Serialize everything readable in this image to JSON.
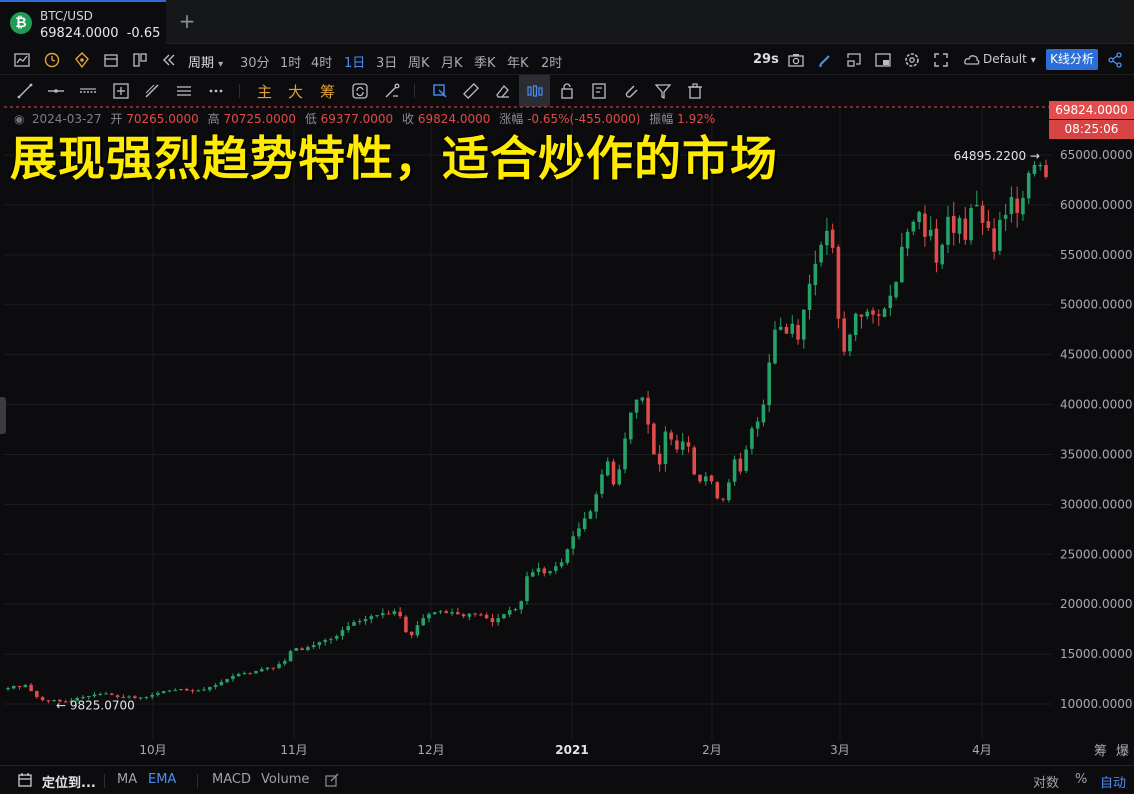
{
  "tab": {
    "symbol": "BTC/USD",
    "price": "69824.0000",
    "change": "-0.65",
    "add_label": "+"
  },
  "toolbar": {
    "period_label": "周期",
    "timeframes": [
      "30分",
      "1时",
      "4时",
      "1日",
      "3日",
      "周K",
      "月K",
      "季K",
      "年K",
      "2时"
    ],
    "active_timeframe": "1日",
    "countdown": "29s",
    "theme": "Default",
    "kline_button": "K线分析"
  },
  "drawing_tools": {
    "indicator_labels": [
      "主",
      "大",
      "筹"
    ]
  },
  "ohlc": {
    "date": "2024-03-27",
    "open_label": "开",
    "open": "70265.0000",
    "high_label": "高",
    "high": "70725.0000",
    "low_label": "低",
    "low": "69377.0000",
    "close_label": "收",
    "close": "69824.0000",
    "change_label": "涨幅",
    "change": "-0.65%(-455.0000)",
    "amplitude_label": "振幅",
    "amplitude": "1.92%"
  },
  "banner": "展现强烈趋势特性，适合炒作的市场",
  "price_axis": {
    "current_price_tag": "69824.0000",
    "countdown_tag": "08:25:06"
  },
  "bottom": {
    "locate_label": "定位到...",
    "indicators": [
      "MA",
      "EMA",
      "MACD",
      "Volume"
    ],
    "active_indicator": "EMA",
    "log_label": "对数",
    "percent_label": "%",
    "auto_label": "自动",
    "right_labels": [
      "筹",
      "爆"
    ]
  },
  "colors": {
    "up": "#26a269",
    "down": "#e04b4b",
    "accent": "#2b6fd6",
    "banner": "#ffeb00",
    "background": "#0c0c0e"
  },
  "chart_data": {
    "type": "candlestick",
    "symbol": "BTC/USD",
    "interval": "1D",
    "y_ticks": [
      10000,
      15000,
      20000,
      25000,
      30000,
      35000,
      40000,
      45000,
      50000,
      55000,
      60000,
      65000
    ],
    "y_tick_labels": [
      "10000.0000",
      "15000.0000",
      "20000.0000",
      "25000.0000",
      "30000.0000",
      "35000.0000",
      "40000.0000",
      "45000.0000",
      "50000.0000",
      "55000.0000",
      "60000.0000",
      "65000.0000"
    ],
    "x_ticks": [
      "10月",
      "11月",
      "12月",
      "2021",
      "2月",
      "3月",
      "4月"
    ],
    "high_annotation": {
      "label": "64895.2200",
      "value": 64895.22
    },
    "low_annotation": {
      "label": "9825.0700",
      "value": 9825.07
    },
    "close_series_approx": [
      11600,
      11800,
      11700,
      11900,
      11300,
      10700,
      10400,
      10300,
      10400,
      10250,
      10200,
      10350,
      10600,
      10700,
      10800,
      10950,
      11000,
      11050,
      10900,
      10700,
      10650,
      10750,
      10600,
      10650,
      10700,
      10900,
      11100,
      11300,
      11350,
      11400,
      11500,
      11350,
      11300,
      11350,
      11450,
      11700,
      11900,
      12200,
      12500,
      12800,
      13000,
      13100,
      13050,
      13300,
      13500,
      13650,
      13600,
      14000,
      14300,
      15300,
      15600,
      15400,
      15700,
      15900,
      16200,
      16400,
      16500,
      16800,
      17400,
      17800,
      18200,
      18300,
      18500,
      18800,
      18900,
      19100,
      19050,
      19300,
      18800,
      17200,
      16900,
      17900,
      18600,
      19000,
      19200,
      19300,
      19100,
      19200,
      19000,
      18800,
      19050,
      19000,
      18900,
      18600,
      18200,
      18600,
      19000,
      19400,
      19500,
      20300,
      22800,
      23200,
      23600,
      23100,
      23300,
      23800,
      24200,
      25500,
      26800,
      27600,
      28600,
      29300,
      31000,
      33000,
      34300,
      32000,
      33500,
      36600,
      39200,
      40500,
      40700,
      38000,
      35000,
      34000,
      37300,
      36500,
      35500,
      36300,
      35800,
      33000,
      32300,
      32800,
      32300,
      30600,
      30500,
      32200,
      34500,
      33300,
      35500,
      37600,
      38300,
      40000,
      44200,
      47500,
      47800,
      47100,
      48100,
      46500,
      49500,
      52100,
      54100,
      56000,
      57400,
      55700,
      48600,
      45300,
      47000,
      49100,
      48800,
      49300,
      49000,
      48900,
      49600,
      50900,
      52300,
      55800,
      57300,
      58300,
      59300,
      56800,
      57500,
      54200,
      56000,
      58800,
      57200,
      58700,
      56500,
      59700,
      60000,
      58200,
      57700,
      55300,
      58500,
      59000,
      60800,
      59200,
      60700,
      63200,
      64000,
      64000,
      62800
    ]
  }
}
